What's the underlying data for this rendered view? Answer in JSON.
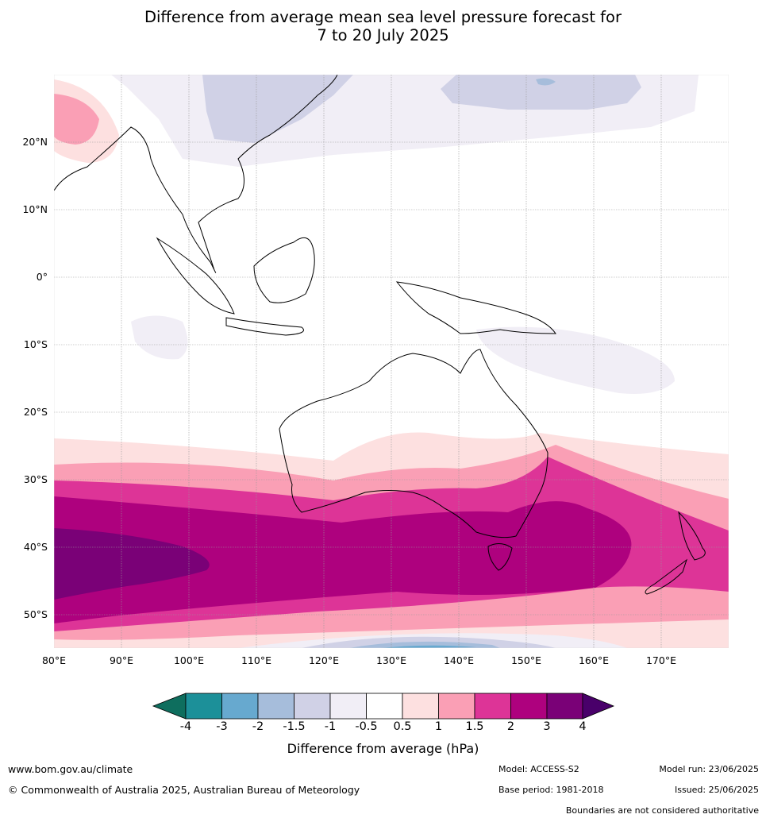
{
  "title": {
    "line1": "Difference from average mean sea level pressure forecast for",
    "line2": "7 to 20 July 2025"
  },
  "lat_ticks": [
    {
      "value": 20,
      "label": "20°N"
    },
    {
      "value": 10,
      "label": "10°N"
    },
    {
      "value": 0,
      "label": "0°"
    },
    {
      "value": -10,
      "label": "10°S"
    },
    {
      "value": -20,
      "label": "20°S"
    },
    {
      "value": -30,
      "label": "30°S"
    },
    {
      "value": -40,
      "label": "40°S"
    },
    {
      "value": -50,
      "label": "50°S"
    }
  ],
  "lon_ticks": [
    {
      "value": 80,
      "label": "80°E"
    },
    {
      "value": 90,
      "label": "90°E"
    },
    {
      "value": 100,
      "label": "100°E"
    },
    {
      "value": 110,
      "label": "110°E"
    },
    {
      "value": 120,
      "label": "120°E"
    },
    {
      "value": 130,
      "label": "130°E"
    },
    {
      "value": 140,
      "label": "140°E"
    },
    {
      "value": 150,
      "label": "150°E"
    },
    {
      "value": 160,
      "label": "160°E"
    },
    {
      "value": 170,
      "label": "170°E"
    }
  ],
  "colorbar": {
    "title": "Difference from average (hPa)",
    "ticks": [
      "-4",
      "-3",
      "-2",
      "-1.5",
      "-1",
      "-0.5",
      "0.5",
      "1",
      "1.5",
      "2",
      "3",
      "4"
    ],
    "colors": [
      "#0e6e5e",
      "#1c9099",
      "#67a9cf",
      "#a6bddb",
      "#d0d1e6",
      "#f1eef6",
      "#ffffff",
      "#fde0e0",
      "#fa9fb5",
      "#dd3497",
      "#ae017e",
      "#7a0177",
      "#49006a"
    ]
  },
  "footer": {
    "website": "www.bom.gov.au/climate",
    "copyright": "© Commonwealth of Australia 2025, Australian Bureau of Meteorology",
    "model": "Model: ACCESS-S2",
    "base_period": "Base period: 1981-2018",
    "model_run": "Model run: 23/06/2025",
    "issued": "Issued: 25/06/2025",
    "disclaimer": "Boundaries are not considered authoritative"
  }
}
